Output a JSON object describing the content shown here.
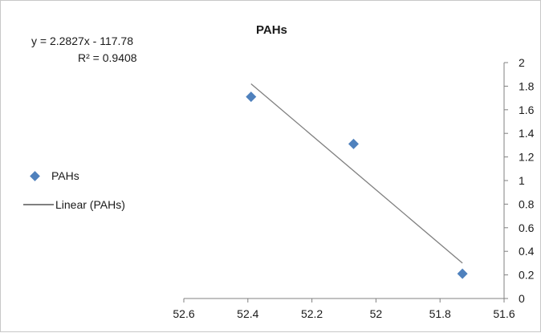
{
  "chart_data": {
    "type": "scatter",
    "title": "PAHs",
    "xlabel": "",
    "ylabel": "",
    "x_reversed": true,
    "y_axis_side": "right",
    "xlim": [
      51.6,
      52.6
    ],
    "ylim": [
      0,
      2
    ],
    "x_ticks": [
      "52.6",
      "52.4",
      "52.2",
      "52",
      "51.8",
      "51.6"
    ],
    "y_ticks": [
      "0",
      "0.2",
      "0.4",
      "0.6",
      "0.8",
      "1",
      "1.2",
      "1.4",
      "1.6",
      "1.8",
      "2"
    ],
    "series": [
      {
        "name": "PAHs",
        "marker": "diamond",
        "color": "#4f81bd",
        "x": [
          52.39,
          52.07,
          51.73
        ],
        "y": [
          1.71,
          1.31,
          0.21
        ]
      }
    ],
    "trendline": {
      "name": "Linear (PAHs)",
      "color": "#808080",
      "x": [
        52.39,
        51.73
      ],
      "y": [
        1.82,
        0.3
      ]
    },
    "equation": "y = 2.2827x - 117.78",
    "r_squared": "R² = 0.9408",
    "legend_position": "left",
    "grid": false
  }
}
